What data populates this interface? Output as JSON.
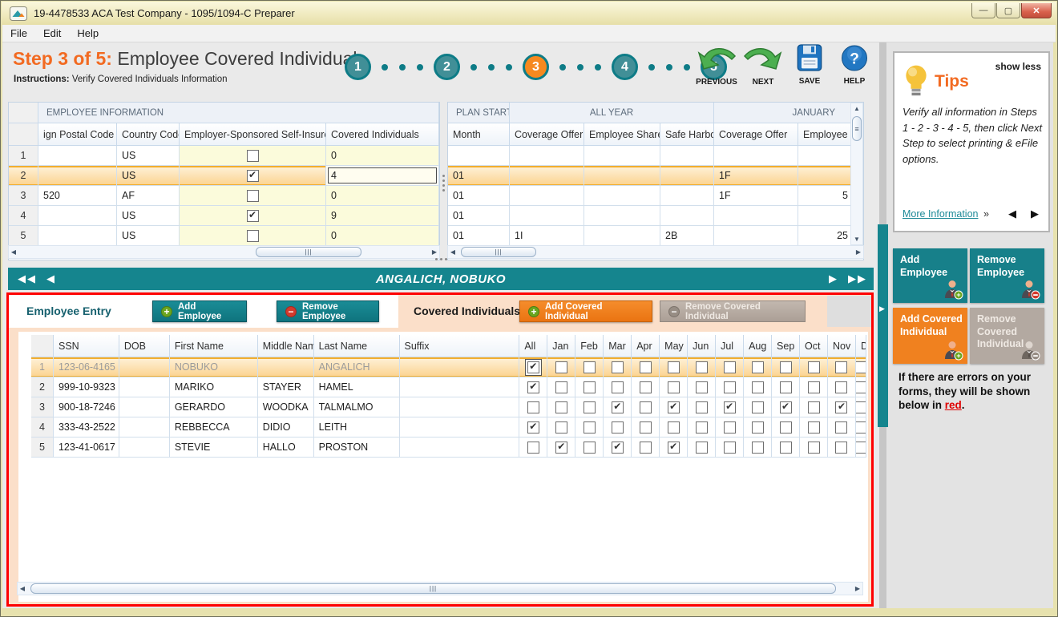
{
  "window": {
    "title": "19-4478533 ACA Test Company - 1095/1094-C Preparer"
  },
  "menu": {
    "file": "File",
    "edit": "Edit",
    "help": "Help"
  },
  "header": {
    "step_label": "Step 3 of 5:",
    "title": " Employee Covered Individuals",
    "instructions_label": "Instructions:",
    "instructions_text": " Verify Covered Individuals Information",
    "steps": [
      "1",
      "2",
      "3",
      "4",
      "5"
    ],
    "active_step": "3"
  },
  "toolbar": {
    "previous": "PREVIOUS",
    "next": "NEXT",
    "save": "SAVE",
    "help": "HELP"
  },
  "left_grid": {
    "group_header": "EMPLOYEE INFORMATION",
    "columns": [
      "ign Postal Code",
      "Country Code",
      "Employer-Sponsored Self-Insured",
      "Covered Individuals"
    ],
    "rows": [
      {
        "num": "1",
        "postal": "",
        "country": "US",
        "self_insured": false,
        "covered": "0",
        "selected": false
      },
      {
        "num": "2",
        "postal": "",
        "country": "US",
        "self_insured": true,
        "covered": "4",
        "selected": true,
        "focus_covered": true
      },
      {
        "num": "3",
        "postal": "520",
        "country": "AF",
        "self_insured": false,
        "covered": "0",
        "selected": false
      },
      {
        "num": "4",
        "postal": "",
        "country": "US",
        "self_insured": true,
        "covered": "9",
        "selected": false
      },
      {
        "num": "5",
        "postal": "",
        "country": "US",
        "self_insured": false,
        "covered": "0",
        "selected": false
      }
    ]
  },
  "right_grid": {
    "group_headers": [
      "PLAN START",
      "ALL YEAR",
      "JANUARY"
    ],
    "columns": [
      "Month",
      "Coverage Offer",
      "Employee Share",
      "Safe Harbor",
      "Coverage Offer",
      "Employee Sha"
    ],
    "rows": [
      {
        "cells": [
          "",
          "",
          "",
          "",
          "",
          ""
        ],
        "selected": false
      },
      {
        "cells": [
          "01",
          "",
          "",
          "",
          "1F",
          ""
        ],
        "selected": true
      },
      {
        "cells": [
          "01",
          "",
          "",
          "",
          "1F",
          "5"
        ],
        "selected": false
      },
      {
        "cells": [
          "01",
          "",
          "",
          "",
          "",
          ""
        ],
        "selected": false
      },
      {
        "cells": [
          "01",
          "1I",
          "",
          "2B",
          "",
          "25"
        ],
        "selected": false
      }
    ]
  },
  "nav_bar": {
    "name": "ANGALICH, NOBUKO",
    "prev_all": "◀◀",
    "prev": "◀",
    "next": "▶",
    "next_all": "▶▶"
  },
  "entry_panel": {
    "employee_entry_label": "Employee Entry",
    "add_employee": "Add Employee",
    "remove_employee": "Remove Employee",
    "covered_individuals_label": "Covered Individuals",
    "add_covered": "Add Covered Individual",
    "remove_covered": "Remove Covered Individual"
  },
  "covered_grid": {
    "columns": [
      "SSN",
      "DOB",
      "First Name",
      "Middle Name",
      "Last Name",
      "Suffix",
      "All",
      "Jan",
      "Feb",
      "Mar",
      "Apr",
      "May",
      "Jun",
      "Jul",
      "Aug",
      "Sep",
      "Oct",
      "Nov",
      "D"
    ],
    "month_keys": [
      "all",
      "jan",
      "feb",
      "mar",
      "apr",
      "may",
      "jun",
      "jul",
      "aug",
      "sep",
      "oct",
      "nov",
      "dec"
    ],
    "rows": [
      {
        "num": "1",
        "ssn": "123-06-4165",
        "dob": "",
        "first": "NOBUKO",
        "middle": "",
        "last": "ANGALICH",
        "suffix": "",
        "months": [
          1,
          0,
          0,
          0,
          0,
          0,
          0,
          0,
          0,
          0,
          0,
          0,
          0
        ],
        "selected": true,
        "focus_all": true
      },
      {
        "num": "2",
        "ssn": "999-10-9323",
        "dob": "",
        "first": "MARIKO",
        "middle": "STAYER",
        "last": "HAMEL",
        "suffix": "",
        "months": [
          1,
          0,
          0,
          0,
          0,
          0,
          0,
          0,
          0,
          0,
          0,
          0,
          0
        ],
        "selected": false
      },
      {
        "num": "3",
        "ssn": "900-18-7246",
        "dob": "",
        "first": "GERARDO",
        "middle": "WOODKA",
        "last": "TALMALMO",
        "suffix": "",
        "months": [
          0,
          0,
          0,
          1,
          0,
          1,
          0,
          1,
          0,
          1,
          0,
          1,
          0
        ],
        "selected": false
      },
      {
        "num": "4",
        "ssn": "333-43-2522",
        "dob": "",
        "first": "REBBECCA",
        "middle": "DIDIO",
        "last": "LEITH",
        "suffix": "",
        "months": [
          1,
          0,
          0,
          0,
          0,
          0,
          0,
          0,
          0,
          0,
          0,
          0,
          0
        ],
        "selected": false
      },
      {
        "num": "5",
        "ssn": "123-41-0617",
        "dob": "",
        "first": "STEVIE",
        "middle": "HALLO",
        "last": "PROSTON",
        "suffix": "",
        "months": [
          0,
          1,
          0,
          1,
          0,
          1,
          0,
          0,
          0,
          0,
          0,
          0,
          0
        ],
        "selected": false
      }
    ]
  },
  "sidebar": {
    "tips": {
      "show_less": "show less",
      "title": "Tips",
      "body": "Verify all information in Steps 1 - 2 - 3 - 4 - 5, then click Next Step to select printing & eFile options.",
      "more_info": "More Information",
      "chevron": "»",
      "prev_arrow": "◀",
      "next_arrow": "▶"
    },
    "buttons": {
      "add_employee": "Add Employee",
      "remove_employee": "Remove Employee",
      "add_covered": "Add Covered Individual",
      "remove_covered": "Remove Covered Individual"
    },
    "error_note": {
      "before": "If there are errors on your forms, they will be shown below in ",
      "red_word": "red",
      "after": "."
    }
  },
  "colors": {
    "teal": "#15858e",
    "orange": "#f0811f",
    "selected_row": "#fbd28d",
    "error_red": "#fe0000",
    "pale_yellow": "#fbfbdb"
  }
}
